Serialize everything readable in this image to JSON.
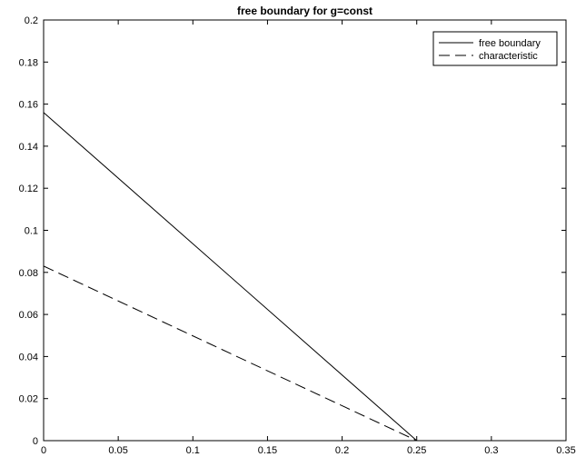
{
  "chart_data": {
    "type": "line",
    "title": "free boundary for g=const",
    "xlabel": "",
    "ylabel": "",
    "xlim": [
      0,
      0.35
    ],
    "ylim": [
      0,
      0.2
    ],
    "x_ticks": [
      0,
      0.05,
      0.1,
      0.15,
      0.2,
      0.25,
      0.3,
      0.35
    ],
    "x_tick_labels": [
      "0",
      "0.05",
      "0.1",
      "0.15",
      "0.2",
      "0.25",
      "0.3",
      "0.35"
    ],
    "y_ticks": [
      0,
      0.02,
      0.04,
      0.06,
      0.08,
      0.1,
      0.12,
      0.14,
      0.16,
      0.18,
      0.2
    ],
    "y_tick_labels": [
      "0",
      "0.02",
      "0.04",
      "0.06",
      "0.08",
      "0.1",
      "0.12",
      "0.14",
      "0.16",
      "0.18",
      "0.2"
    ],
    "grid": false,
    "legend_position": "top-right",
    "series": [
      {
        "name": "free boundary",
        "line_style": "solid",
        "color": "#000000",
        "x": [
          0,
          0.25
        ],
        "y": [
          0.156,
          0
        ]
      },
      {
        "name": "characteristic",
        "line_style": "dashed",
        "color": "#000000",
        "x": [
          0,
          0.25
        ],
        "y": [
          0.083,
          0
        ]
      }
    ]
  }
}
